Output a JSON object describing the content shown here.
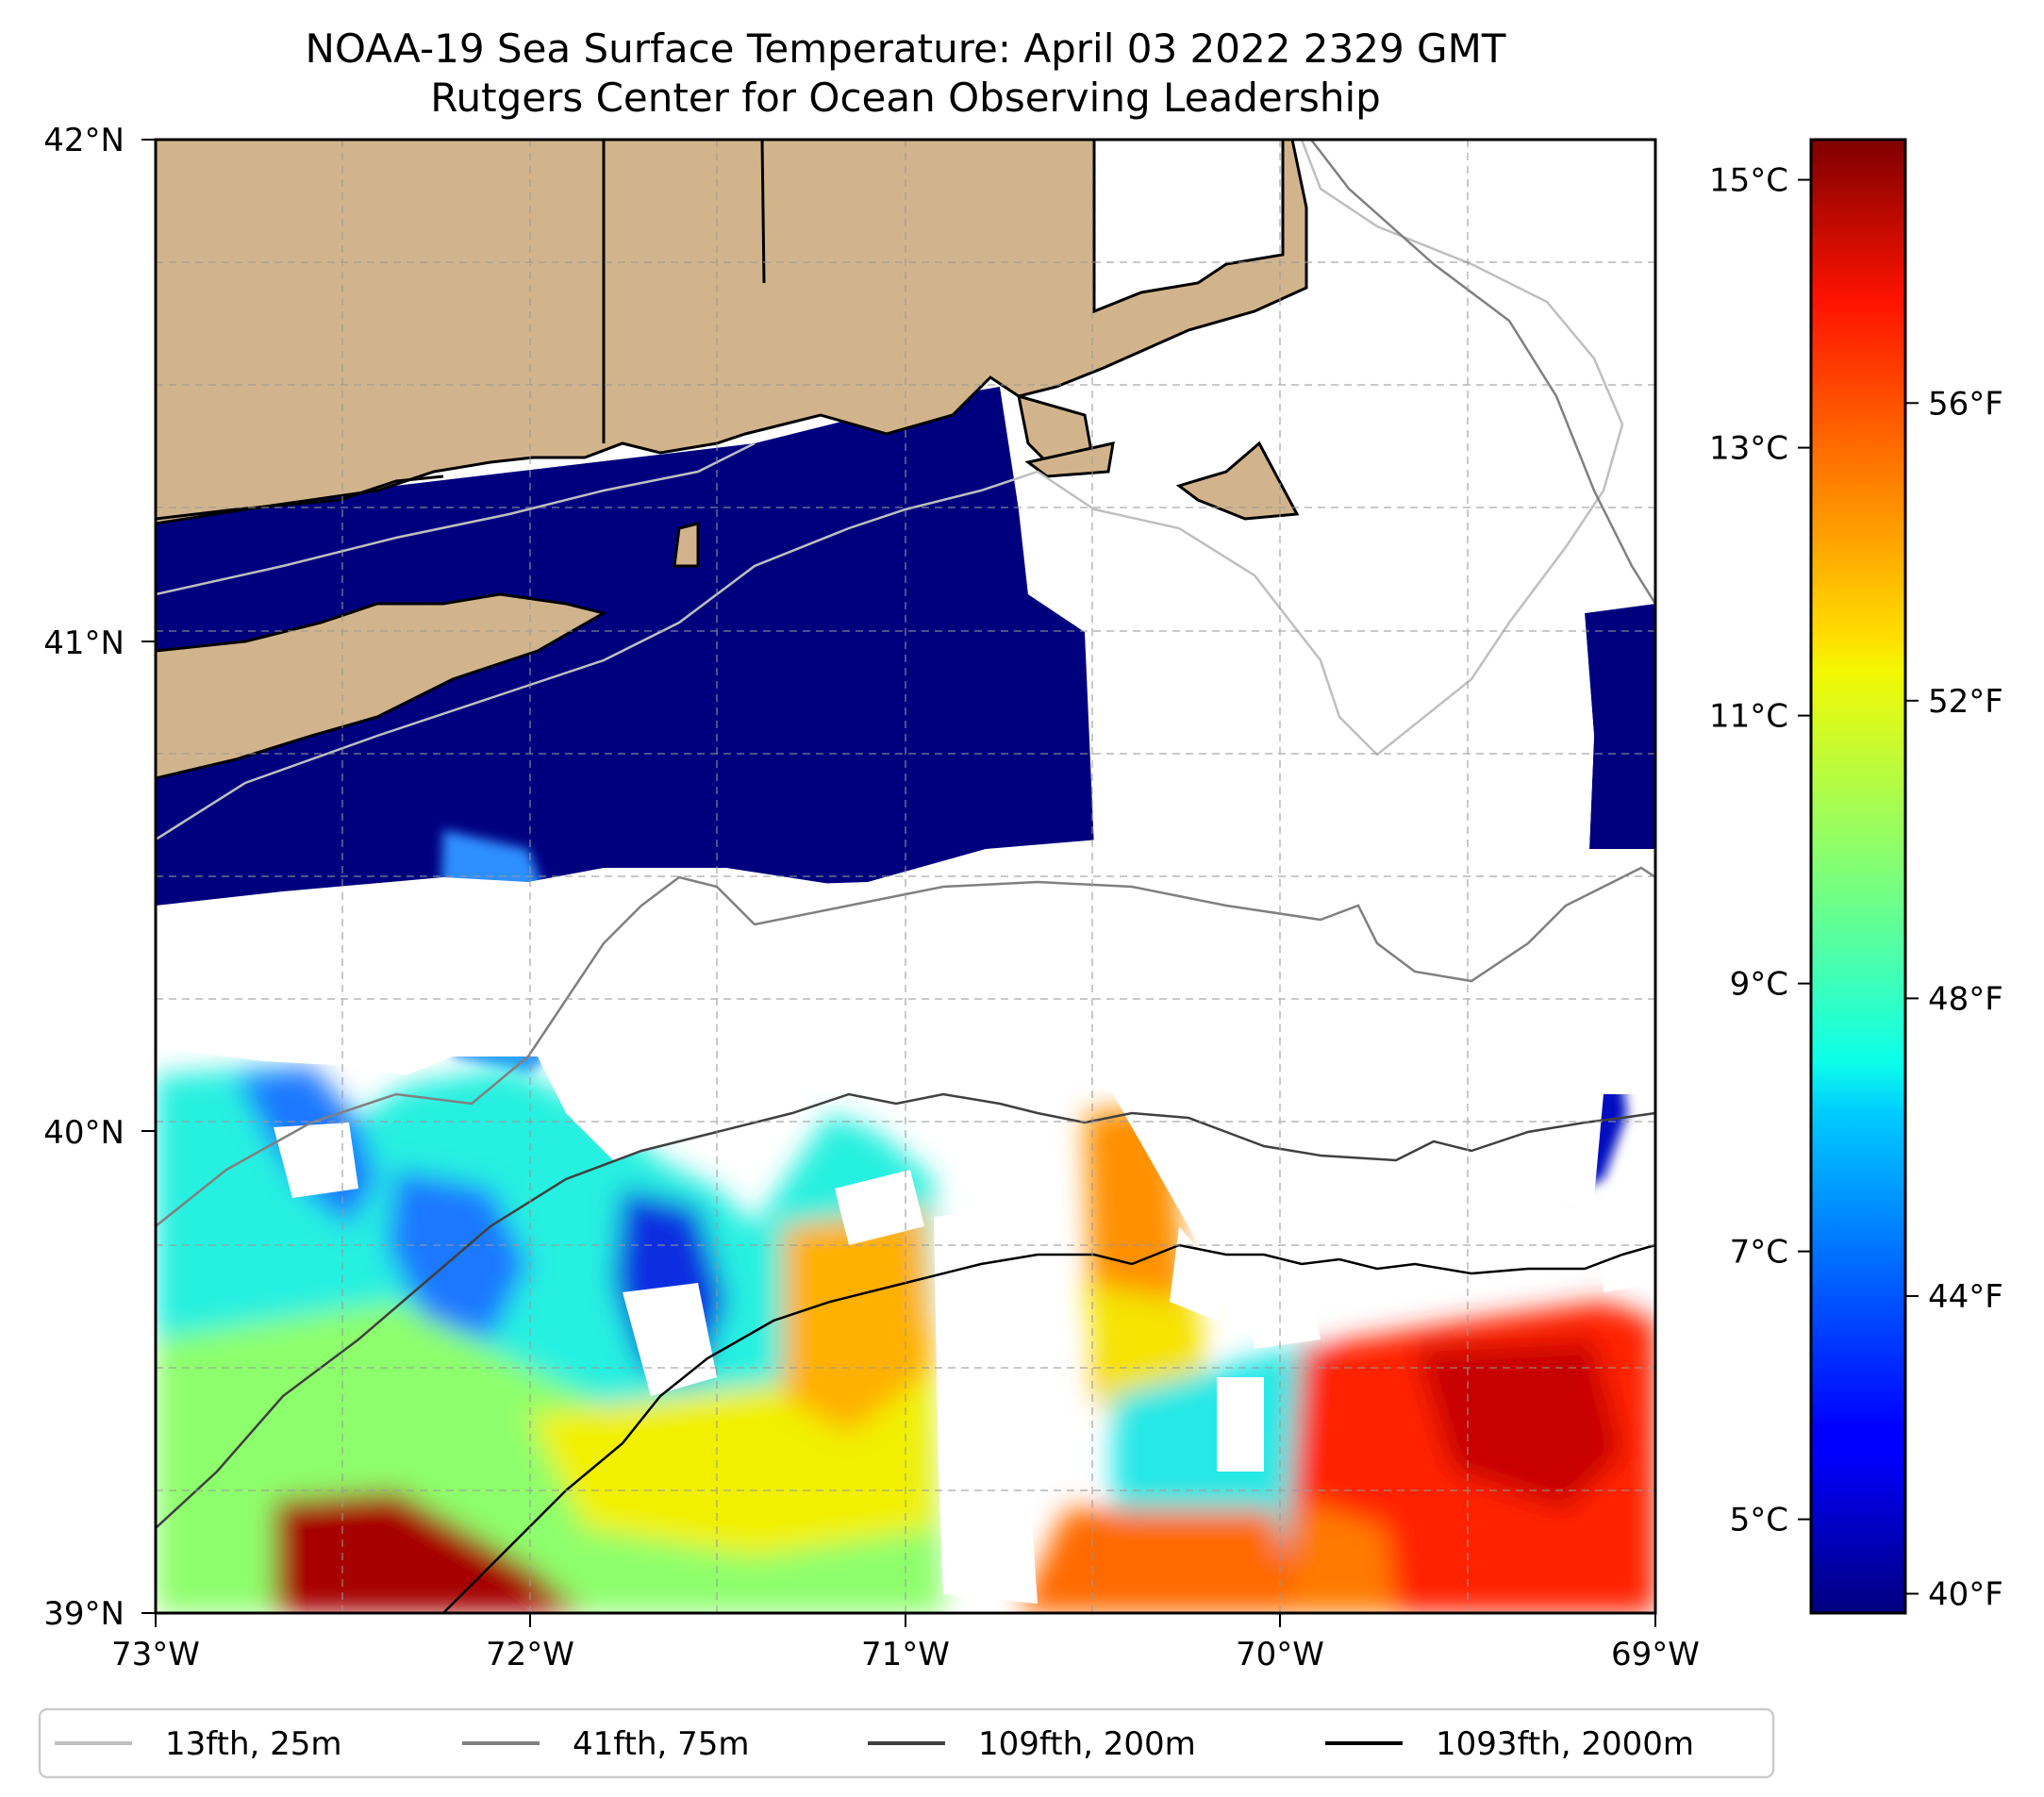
{
  "figure": {
    "title": "NOAA-19 Sea Surface Temperature: April 03 2022 2329 GMT",
    "subtitle": "Rutgers Center for Ocean Observing Leadership"
  },
  "map": {
    "lon_range": [
      -73,
      -69
    ],
    "lat_range": [
      39,
      42
    ],
    "lon_labels": [
      "73°W",
      "72°W",
      "71°W",
      "70°W",
      "69°W"
    ],
    "lat_labels": [
      "42°N",
      "41°N",
      "40°N",
      "39°N"
    ],
    "gridlines": true,
    "land_color": "#d2b48c",
    "cloud_mask_color": "#ffffff"
  },
  "colorbar": {
    "colormap": "jet",
    "range_celsius": [
      4.3,
      15.3
    ],
    "celsius_labels": [
      "15°C",
      "13°C",
      "11°C",
      "9°C",
      "7°C",
      "5°C"
    ],
    "celsius_values": [
      15,
      13,
      11,
      9,
      7,
      5
    ],
    "fahrenheit_labels": [
      "56°F",
      "52°F",
      "48°F",
      "44°F",
      "40°F"
    ],
    "fahrenheit_values": [
      56,
      52,
      48,
      44,
      40
    ]
  },
  "legend": {
    "placement": "bottom",
    "entries": [
      {
        "label": "13fth, 25m",
        "color": "#bfbfbf"
      },
      {
        "label": "41fth, 75m",
        "color": "#808080"
      },
      {
        "label": "109fth, 200m",
        "color": "#404040"
      },
      {
        "label": "1093fth, 2000m",
        "color": "#000000"
      }
    ]
  }
}
